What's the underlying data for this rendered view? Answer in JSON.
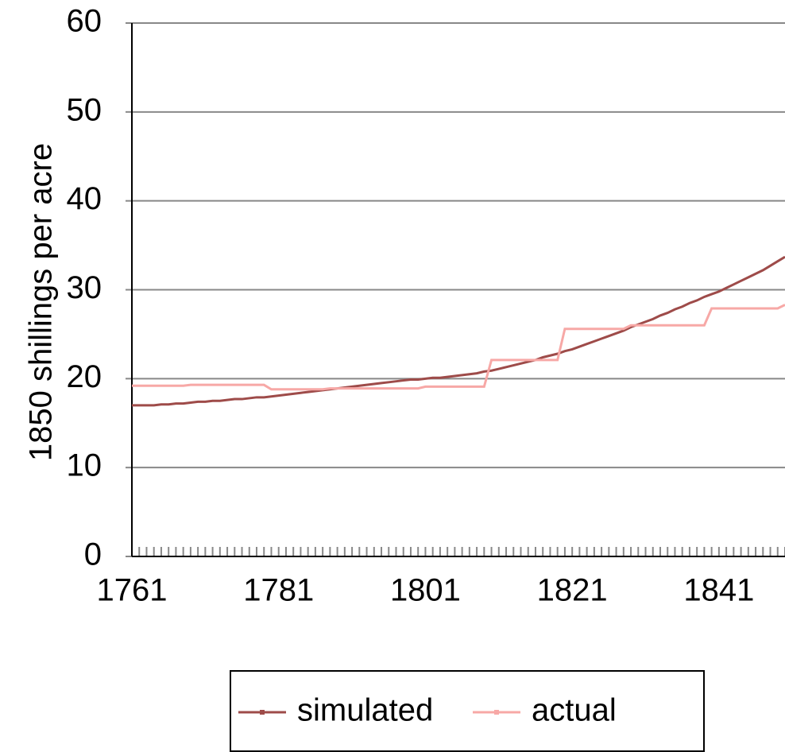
{
  "chart_data": {
    "type": "line",
    "y_label": "1850 shillings per acre",
    "x": [
      1761,
      1762,
      1763,
      1764,
      1765,
      1766,
      1767,
      1768,
      1769,
      1770,
      1771,
      1772,
      1773,
      1774,
      1775,
      1776,
      1777,
      1778,
      1779,
      1780,
      1781,
      1782,
      1783,
      1784,
      1785,
      1786,
      1787,
      1788,
      1789,
      1790,
      1791,
      1792,
      1793,
      1794,
      1795,
      1796,
      1797,
      1798,
      1799,
      1800,
      1801,
      1802,
      1803,
      1804,
      1805,
      1806,
      1807,
      1808,
      1809,
      1810,
      1811,
      1812,
      1813,
      1814,
      1815,
      1816,
      1817,
      1818,
      1819,
      1820,
      1821,
      1822,
      1823,
      1824,
      1825,
      1826,
      1827,
      1828,
      1829,
      1830,
      1831,
      1832,
      1833,
      1834,
      1835,
      1836,
      1837,
      1838,
      1839,
      1840,
      1841,
      1842,
      1843,
      1844,
      1845,
      1846,
      1847,
      1848,
      1849,
      1850
    ],
    "series": [
      {
        "name": "simulated",
        "color": "#9e4b49",
        "values": [
          17.0,
          17.0,
          17.0,
          17.0,
          17.1,
          17.1,
          17.2,
          17.2,
          17.3,
          17.4,
          17.4,
          17.5,
          17.5,
          17.6,
          17.7,
          17.7,
          17.8,
          17.9,
          17.9,
          18.0,
          18.1,
          18.2,
          18.3,
          18.4,
          18.5,
          18.6,
          18.7,
          18.8,
          18.9,
          19.0,
          19.1,
          19.2,
          19.3,
          19.4,
          19.5,
          19.6,
          19.7,
          19.8,
          19.9,
          19.9,
          20.0,
          20.1,
          20.1,
          20.2,
          20.3,
          20.4,
          20.5,
          20.6,
          20.8,
          20.9,
          21.1,
          21.3,
          21.5,
          21.7,
          21.9,
          22.1,
          22.4,
          22.6,
          22.8,
          23.1,
          23.3,
          23.6,
          23.9,
          24.2,
          24.5,
          24.8,
          25.1,
          25.4,
          25.8,
          26.1,
          26.4,
          26.7,
          27.1,
          27.4,
          27.8,
          28.1,
          28.5,
          28.8,
          29.2,
          29.5,
          29.8,
          30.2,
          30.6,
          31.0,
          31.4,
          31.8,
          32.2,
          32.7,
          33.2,
          33.7
        ]
      },
      {
        "name": "actual",
        "color": "#f7a8a6",
        "values": [
          19.2,
          19.2,
          19.2,
          19.2,
          19.2,
          19.2,
          19.2,
          19.2,
          19.3,
          19.3,
          19.3,
          19.3,
          19.3,
          19.3,
          19.3,
          19.3,
          19.3,
          19.3,
          19.3,
          18.8,
          18.8,
          18.8,
          18.8,
          18.8,
          18.8,
          18.8,
          18.8,
          18.9,
          18.9,
          18.9,
          18.9,
          18.9,
          18.9,
          18.9,
          18.9,
          18.9,
          18.9,
          18.9,
          18.9,
          18.9,
          19.1,
          19.1,
          19.1,
          19.1,
          19.1,
          19.1,
          19.1,
          19.1,
          19.1,
          22.1,
          22.1,
          22.1,
          22.1,
          22.1,
          22.1,
          22.1,
          22.1,
          22.1,
          22.1,
          25.6,
          25.6,
          25.6,
          25.6,
          25.6,
          25.6,
          25.6,
          25.6,
          25.6,
          26.0,
          26.0,
          26.0,
          26.0,
          26.0,
          26.0,
          26.0,
          26.0,
          26.0,
          26.0,
          26.0,
          27.9,
          27.9,
          27.9,
          27.9,
          27.9,
          27.9,
          27.9,
          27.9,
          27.9,
          27.9,
          28.3
        ]
      }
    ],
    "xlim": [
      1761,
      1850
    ],
    "xticks": [
      1761,
      1781,
      1801,
      1821,
      1841
    ],
    "ylim": [
      0,
      60
    ],
    "yticks": [
      0,
      10,
      20,
      30,
      40,
      50,
      60
    ],
    "grid": true
  }
}
